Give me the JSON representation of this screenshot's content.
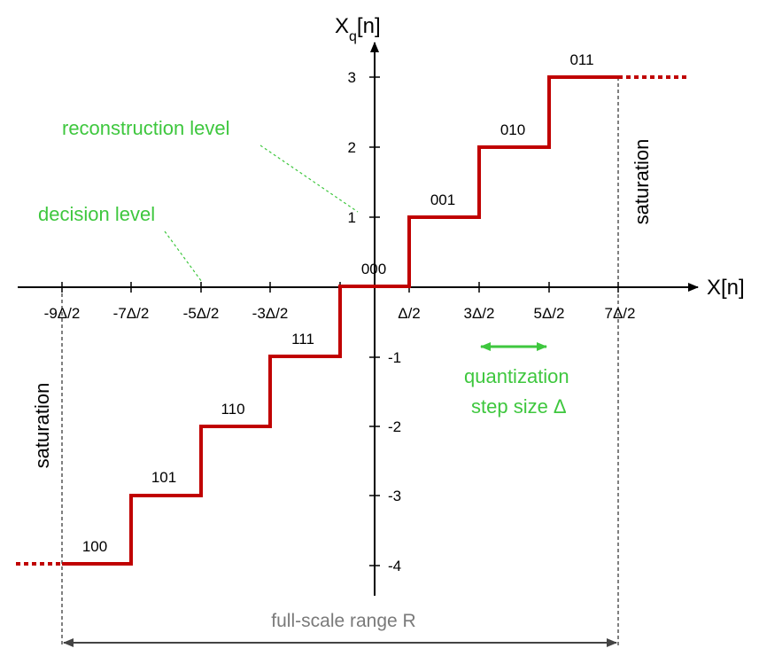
{
  "axes": {
    "x_label": "X[n]",
    "y_label_main": "X",
    "y_label_sub": "q",
    "y_label_tail": "[n]",
    "x_ticks": [
      "-9Δ/2",
      "-7Δ/2",
      "-5Δ/2",
      "-3Δ/2",
      "Δ/2",
      "3Δ/2",
      "5Δ/2",
      "7Δ/2"
    ],
    "y_ticks": [
      "3",
      "2",
      "1",
      "-1",
      "-2",
      "-3",
      "-4"
    ]
  },
  "codes": [
    "100",
    "101",
    "110",
    "111",
    "000",
    "001",
    "010",
    "011"
  ],
  "annotations": {
    "reconstruction_level": "reconstruction level",
    "decision_level": "decision level",
    "step_size_line1": "quantization",
    "step_size_line2": "step size Δ",
    "saturation_left": "saturation",
    "saturation_right": "saturation",
    "full_scale": "full-scale range R"
  },
  "colors": {
    "staircase": "#c00000",
    "annotation": "#3ec73e",
    "range_text": "#7a7a7a"
  }
}
